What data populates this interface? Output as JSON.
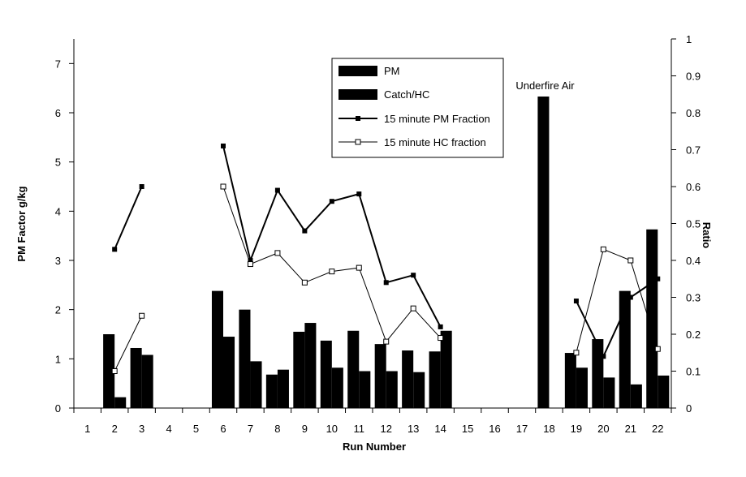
{
  "chart_data": {
    "type": "bar",
    "title": "",
    "xlabel": "Run Number",
    "ylabel": "PM Factor g/kg",
    "y2label": "Ratio",
    "categories": [
      "1",
      "2",
      "3",
      "4",
      "5",
      "6",
      "7",
      "8",
      "9",
      "10",
      "11",
      "12",
      "13",
      "14",
      "15",
      "16",
      "17",
      "18",
      "19",
      "20",
      "21",
      "22"
    ],
    "ylim": [
      0,
      7.5
    ],
    "yticks": [
      "0",
      "1",
      "2",
      "3",
      "4",
      "5",
      "6",
      "7"
    ],
    "y2lim": [
      0,
      1
    ],
    "y2ticks": [
      "0",
      "0.1",
      "0.2",
      "0.3",
      "0.4",
      "0.5",
      "0.6",
      "0.7",
      "0.8",
      "0.9",
      "1"
    ],
    "grid": false,
    "legend_position": "top-center",
    "series": [
      {
        "name": "PM",
        "kind": "bar",
        "axis": "left",
        "color": "#000000",
        "values": [
          null,
          1.5,
          1.22,
          null,
          null,
          2.38,
          2.0,
          0.68,
          1.55,
          1.37,
          1.57,
          1.3,
          1.17,
          1.15,
          null,
          null,
          null,
          6.33,
          1.12,
          1.4,
          2.38,
          3.63
        ]
      },
      {
        "name": "Catch/HC",
        "kind": "bar",
        "axis": "left",
        "color": "#000000",
        "values": [
          null,
          0.22,
          1.08,
          null,
          null,
          1.45,
          0.95,
          0.78,
          1.73,
          0.82,
          0.75,
          0.75,
          0.73,
          1.57,
          null,
          null,
          null,
          null,
          0.82,
          0.62,
          0.48,
          0.66
        ]
      },
      {
        "name": "15 minute PM Fraction",
        "kind": "line",
        "axis": "right",
        "color": "#000000",
        "marker": "filled-square",
        "values": [
          null,
          0.43,
          0.6,
          null,
          null,
          0.71,
          0.4,
          0.59,
          0.48,
          0.56,
          0.58,
          0.34,
          0.36,
          0.22,
          null,
          null,
          null,
          null,
          0.29,
          0.14,
          0.3,
          0.35
        ]
      },
      {
        "name": "15 minute HC fraction",
        "kind": "line",
        "axis": "right",
        "color": "#000000",
        "marker": "open-square",
        "values": [
          null,
          0.1,
          0.25,
          null,
          null,
          0.6,
          0.39,
          0.42,
          0.34,
          0.37,
          0.38,
          0.18,
          0.27,
          0.19,
          null,
          null,
          null,
          null,
          0.15,
          0.43,
          0.4,
          0.16
        ]
      }
    ],
    "annotations": [
      {
        "text": "Underfire Air",
        "category": "18"
      }
    ]
  }
}
